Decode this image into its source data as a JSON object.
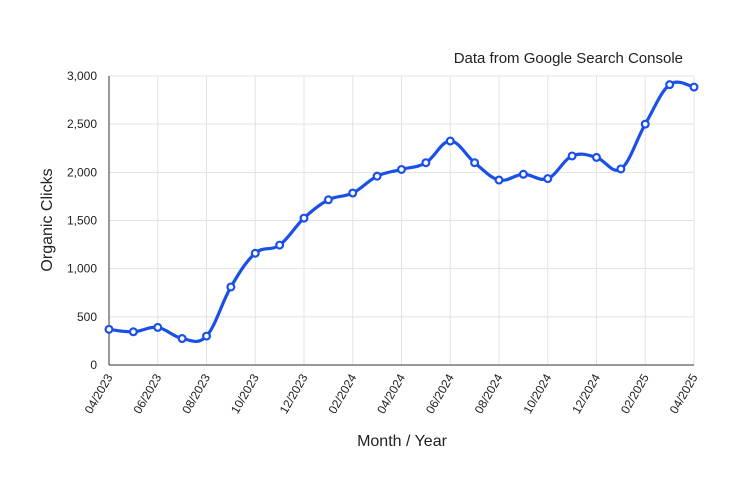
{
  "chart_data": {
    "type": "line",
    "title": "Data from Google Search Console",
    "xlabel": "Month / Year",
    "ylabel": "Organic Clicks",
    "ylim": [
      0,
      3000
    ],
    "grid": true,
    "y_ticks": [
      {
        "value": 0,
        "label": "0"
      },
      {
        "value": 500,
        "label": "500"
      },
      {
        "value": 1000,
        "label": "1,000"
      },
      {
        "value": 1500,
        "label": "1,500"
      },
      {
        "value": 2000,
        "label": "2,000"
      },
      {
        "value": 2500,
        "label": "2,500"
      },
      {
        "value": 3000,
        "label": "3,000"
      }
    ],
    "x_tick_labels": [
      "04/2023",
      "06/2023",
      "08/2023",
      "10/2023",
      "12/2023",
      "02/2024",
      "04/2024",
      "06/2024",
      "08/2024",
      "10/2024",
      "12/2024",
      "02/2025",
      "04/2025"
    ],
    "x": [
      "04/2023",
      "05/2023",
      "06/2023",
      "07/2023",
      "08/2023",
      "09/2023",
      "10/2023",
      "11/2023",
      "12/2023",
      "01/2024",
      "02/2024",
      "03/2024",
      "04/2024",
      "05/2024",
      "06/2024",
      "07/2024",
      "08/2024",
      "09/2024",
      "10/2024",
      "11/2024",
      "12/2024",
      "01/2025",
      "02/2025",
      "03/2025",
      "04/2025"
    ],
    "series": [
      {
        "color": "#1a4fe8",
        "values": [
          370,
          345,
          390,
          275,
          300,
          810,
          1160,
          1245,
          1525,
          1715,
          1785,
          1960,
          2030,
          2100,
          2325,
          2100,
          1920,
          1980,
          1935,
          2170,
          2155,
          2035,
          2500,
          2910,
          2885
        ]
      }
    ]
  }
}
